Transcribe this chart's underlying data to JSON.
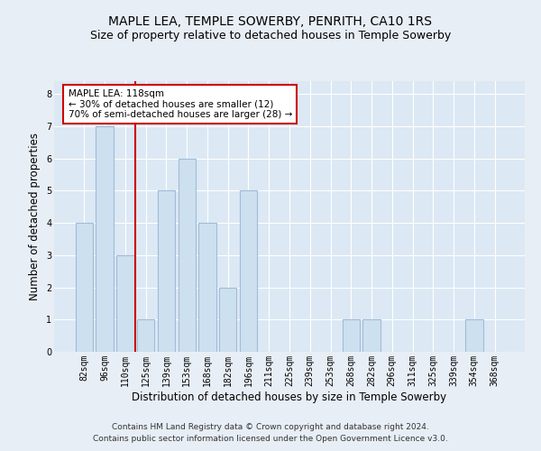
{
  "title": "MAPLE LEA, TEMPLE SOWERBY, PENRITH, CA10 1RS",
  "subtitle": "Size of property relative to detached houses in Temple Sowerby",
  "xlabel": "Distribution of detached houses by size in Temple Sowerby",
  "ylabel": "Number of detached properties",
  "categories": [
    "82sqm",
    "96sqm",
    "110sqm",
    "125sqm",
    "139sqm",
    "153sqm",
    "168sqm",
    "182sqm",
    "196sqm",
    "211sqm",
    "225sqm",
    "239sqm",
    "253sqm",
    "268sqm",
    "282sqm",
    "296sqm",
    "311sqm",
    "325sqm",
    "339sqm",
    "354sqm",
    "368sqm"
  ],
  "values": [
    4,
    7,
    3,
    1,
    5,
    6,
    4,
    2,
    5,
    0,
    0,
    0,
    0,
    1,
    1,
    0,
    0,
    0,
    0,
    1,
    0
  ],
  "bar_color": "#cce0f0",
  "bar_edge_color": "#a0bcd8",
  "vline_x": 2.5,
  "vline_color": "#cc0000",
  "ylim": [
    0,
    8.4
  ],
  "yticks": [
    0,
    1,
    2,
    3,
    4,
    5,
    6,
    7,
    8
  ],
  "annotation_text": "MAPLE LEA: 118sqm\n← 30% of detached houses are smaller (12)\n70% of semi-detached houses are larger (28) →",
  "annotation_box_color": "#ffffff",
  "annotation_box_edge": "#cc0000",
  "footer1": "Contains HM Land Registry data © Crown copyright and database right 2024.",
  "footer2": "Contains public sector information licensed under the Open Government Licence v3.0.",
  "background_color": "#e8eef5",
  "plot_bg_color": "#dce8f4",
  "grid_color": "#ffffff",
  "title_fontsize": 10,
  "subtitle_fontsize": 9,
  "axis_label_fontsize": 8.5,
  "tick_fontsize": 7,
  "footer_fontsize": 6.5,
  "annotation_fontsize": 7.5
}
